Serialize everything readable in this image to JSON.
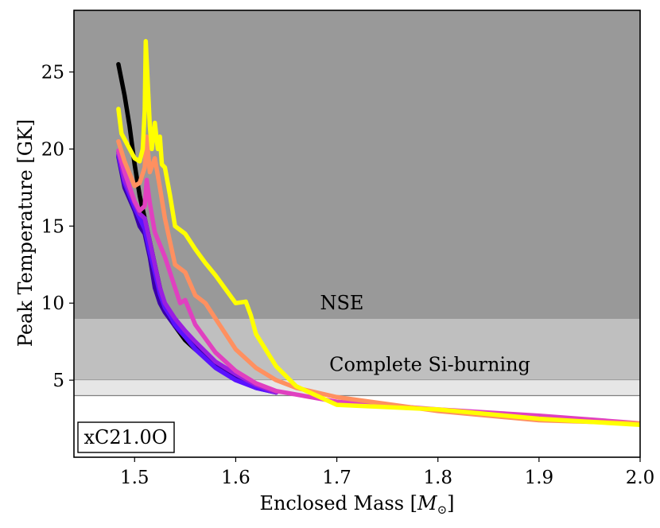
{
  "chart_data": {
    "type": "line",
    "title": "",
    "xlabel_text": "Enclosed Mass [",
    "xlabel_symbol": "M",
    "xlabel_subscript": "⊙",
    "xlabel_close": "]",
    "ylabel": "Peak Temperature [GK]",
    "xlim": [
      1.44,
      2.0
    ],
    "ylim": [
      0,
      29
    ],
    "xticks": [
      1.5,
      1.6,
      1.7,
      1.8,
      1.9,
      2.0
    ],
    "xtick_labels": [
      "1.5",
      "1.6",
      "1.7",
      "1.8",
      "1.9",
      "2.0"
    ],
    "yticks": [
      5,
      10,
      15,
      20,
      25
    ],
    "ytick_labels": [
      "5",
      "10",
      "15",
      "20",
      "25"
    ],
    "model_label": "xC21.0O",
    "regions": [
      {
        "name": "NSE",
        "y_from": 9,
        "y_to": 29,
        "color": "#999999"
      },
      {
        "name": "Complete Si-burning",
        "y_from": 5,
        "y_to": 9,
        "color": "#bfbfbf"
      },
      {
        "name": "",
        "y_from": 4,
        "y_to": 5,
        "color": "#e6e6e6"
      }
    ],
    "region_labels": [
      {
        "text": "NSE",
        "x": 1.705,
        "y": 9.6
      },
      {
        "text": "Complete Si-burning",
        "x": 1.792,
        "y": 5.6
      }
    ],
    "series": [
      {
        "name": "black",
        "color": "#000000",
        "x": [
          1.484,
          1.49,
          1.495,
          1.5,
          1.505,
          1.51,
          1.515,
          1.52,
          1.525,
          1.53,
          1.535,
          1.54,
          1.55,
          1.56,
          1.57,
          1.58,
          1.6,
          1.62,
          1.64
        ],
        "y": [
          25.5,
          23.5,
          21.5,
          19.0,
          17.0,
          15.5,
          14.0,
          12.5,
          11.0,
          9.8,
          9.2,
          8.5,
          7.6,
          7.0,
          6.5,
          6.0,
          5.2,
          4.6,
          4.2
        ]
      },
      {
        "name": "indigo",
        "color": "#3a00a8",
        "x": [
          1.484,
          1.49,
          1.5,
          1.505,
          1.51,
          1.515,
          1.52,
          1.525,
          1.53,
          1.54,
          1.55,
          1.56,
          1.58,
          1.6,
          1.62,
          1.64
        ],
        "y": [
          19.5,
          17.5,
          16.0,
          15.0,
          14.5,
          13.0,
          11.0,
          10.0,
          9.4,
          8.5,
          7.8,
          7.2,
          6.0,
          5.1,
          4.5,
          4.2
        ]
      },
      {
        "name": "blue-violet",
        "color": "#5a12ff",
        "x": [
          1.484,
          1.49,
          1.5,
          1.505,
          1.51,
          1.515,
          1.52,
          1.525,
          1.53,
          1.535,
          1.54,
          1.55,
          1.56,
          1.58,
          1.6,
          1.62,
          1.64
        ],
        "y": [
          19.6,
          17.8,
          16.2,
          15.5,
          14.8,
          13.3,
          12.0,
          10.6,
          9.7,
          9.2,
          8.6,
          7.8,
          7.0,
          5.8,
          5.0,
          4.5,
          4.2
        ]
      },
      {
        "name": "purple",
        "color": "#9a1ee0",
        "x": [
          1.484,
          1.49,
          1.5,
          1.505,
          1.51,
          1.515,
          1.52,
          1.525,
          1.53,
          1.54,
          1.55,
          1.56,
          1.58,
          1.6,
          1.62,
          1.64
        ],
        "y": [
          19.8,
          18.0,
          16.5,
          15.8,
          15.5,
          14.0,
          12.5,
          11.0,
          10.0,
          9.0,
          8.2,
          7.5,
          6.2,
          5.4,
          4.7,
          4.2
        ]
      },
      {
        "name": "magenta",
        "color": "#e040c0",
        "x": [
          1.484,
          1.49,
          1.5,
          1.505,
          1.51,
          1.512,
          1.515,
          1.52,
          1.53,
          1.54,
          1.545,
          1.55,
          1.56,
          1.58,
          1.6,
          1.62,
          1.64,
          1.7,
          1.8,
          1.9,
          2.0
        ],
        "y": [
          19.9,
          18.5,
          16.6,
          16.0,
          16.3,
          18.0,
          16.5,
          14.6,
          13.0,
          11.0,
          10.0,
          10.2,
          8.6,
          6.8,
          5.6,
          4.8,
          4.3,
          3.6,
          3.1,
          2.7,
          2.2
        ]
      },
      {
        "name": "salmon",
        "color": "#ff9060",
        "x": [
          1.484,
          1.49,
          1.5,
          1.505,
          1.51,
          1.512,
          1.515,
          1.52,
          1.525,
          1.53,
          1.54,
          1.55,
          1.56,
          1.57,
          1.58,
          1.6,
          1.62,
          1.64,
          1.66,
          1.7,
          1.8,
          1.9,
          2.0
        ],
        "y": [
          20.5,
          19.2,
          17.6,
          17.8,
          18.8,
          20.8,
          18.5,
          19.4,
          17.5,
          15.5,
          12.5,
          12.0,
          10.5,
          10.0,
          9.0,
          7.0,
          5.8,
          5.0,
          4.5,
          3.9,
          3.0,
          2.4,
          2.2
        ]
      },
      {
        "name": "yellow",
        "color": "#ffff00",
        "x": [
          1.484,
          1.487,
          1.5,
          1.505,
          1.508,
          1.51,
          1.511,
          1.515,
          1.517,
          1.52,
          1.523,
          1.525,
          1.527,
          1.53,
          1.535,
          1.54,
          1.55,
          1.56,
          1.57,
          1.58,
          1.6,
          1.61,
          1.615,
          1.62,
          1.64,
          1.66,
          1.7,
          1.8,
          1.9,
          2.0
        ],
        "y": [
          22.6,
          21.0,
          19.4,
          19.2,
          20.0,
          22.5,
          27.0,
          21.5,
          20.0,
          21.7,
          20.0,
          20.8,
          19.0,
          18.8,
          17.0,
          15.0,
          14.5,
          13.5,
          12.6,
          11.8,
          10.0,
          10.1,
          9.2,
          8.0,
          5.9,
          4.6,
          3.4,
          3.1,
          2.5,
          2.1
        ]
      }
    ]
  }
}
